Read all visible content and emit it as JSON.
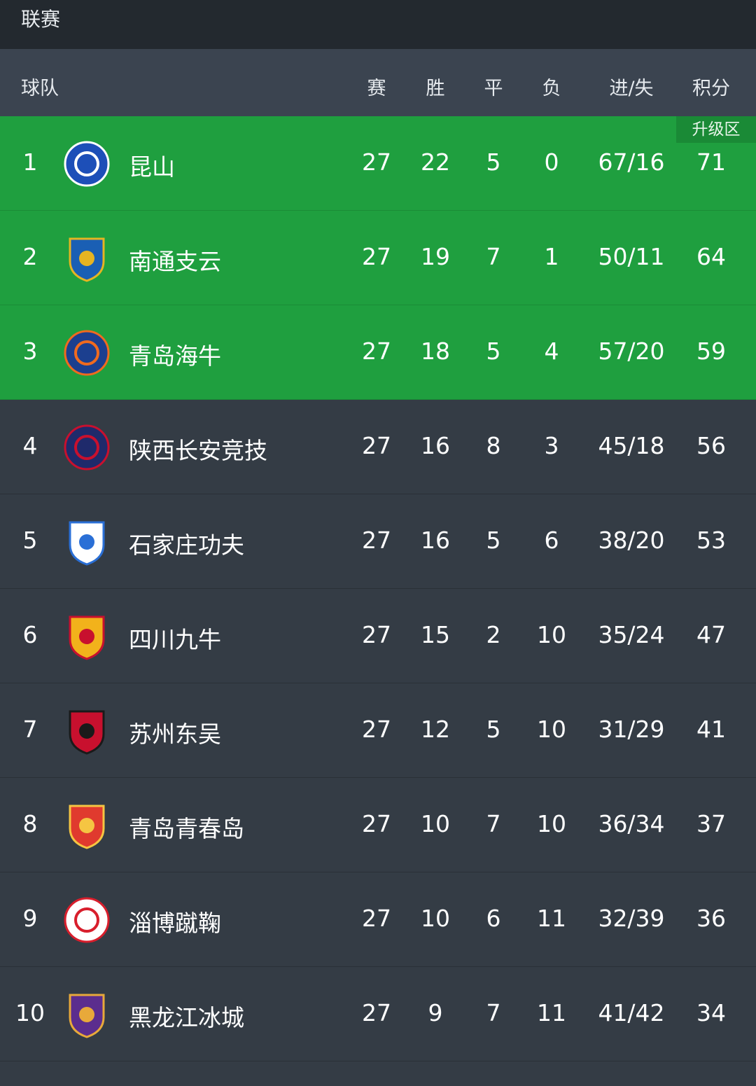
{
  "topbar": {
    "title": "联赛"
  },
  "header": {
    "team": "球队",
    "played": "赛",
    "won": "胜",
    "drawn": "平",
    "lost": "负",
    "goals": "进/失",
    "points": "积分"
  },
  "promotion_label": "升级区",
  "colors": {
    "promotion": "#1f9f3f",
    "row": "#343c45",
    "header": "#3b4450",
    "topbar": "#23292f"
  },
  "rows": [
    {
      "rank": "1",
      "team": "昆山",
      "played": "27",
      "won": "22",
      "drawn": "5",
      "lost": "0",
      "goals": "67/16",
      "points": "71",
      "promo": true,
      "logo_color": "#1d4fb8",
      "logo_accent": "#ffffff"
    },
    {
      "rank": "2",
      "team": "南通支云",
      "played": "27",
      "won": "19",
      "drawn": "7",
      "lost": "1",
      "goals": "50/11",
      "points": "64",
      "promo": true,
      "logo_color": "#1a5fb4",
      "logo_accent": "#e6b422"
    },
    {
      "rank": "3",
      "team": "青岛海牛",
      "played": "27",
      "won": "18",
      "drawn": "5",
      "lost": "4",
      "goals": "57/20",
      "points": "59",
      "promo": true,
      "logo_color": "#1c3f8f",
      "logo_accent": "#f06a1e"
    },
    {
      "rank": "4",
      "team": "陕西长安竞技",
      "played": "27",
      "won": "16",
      "drawn": "8",
      "lost": "3",
      "goals": "45/18",
      "points": "56",
      "promo": false,
      "logo_color": "#1f2a6b",
      "logo_accent": "#c8102e"
    },
    {
      "rank": "5",
      "team": "石家庄功夫",
      "played": "27",
      "won": "16",
      "drawn": "5",
      "lost": "6",
      "goals": "38/20",
      "points": "53",
      "promo": false,
      "logo_color": "#ffffff",
      "logo_accent": "#2a6fd6"
    },
    {
      "rank": "6",
      "team": "四川九牛",
      "played": "27",
      "won": "15",
      "drawn": "2",
      "lost": "10",
      "goals": "35/24",
      "points": "47",
      "promo": false,
      "logo_color": "#f2b21b",
      "logo_accent": "#c8102e"
    },
    {
      "rank": "7",
      "team": "苏州东吴",
      "played": "27",
      "won": "12",
      "drawn": "5",
      "lost": "10",
      "goals": "31/29",
      "points": "41",
      "promo": false,
      "logo_color": "#c8102e",
      "logo_accent": "#1a1a1a"
    },
    {
      "rank": "8",
      "team": "青岛青春岛",
      "played": "27",
      "won": "10",
      "drawn": "7",
      "lost": "10",
      "goals": "36/34",
      "points": "37",
      "promo": false,
      "logo_color": "#e03a2e",
      "logo_accent": "#f5c542"
    },
    {
      "rank": "9",
      "team": "淄博蹴鞠",
      "played": "27",
      "won": "10",
      "drawn": "6",
      "lost": "11",
      "goals": "32/39",
      "points": "36",
      "promo": false,
      "logo_color": "#ffffff",
      "logo_accent": "#d81e2c"
    },
    {
      "rank": "10",
      "team": "黑龙江冰城",
      "played": "27",
      "won": "9",
      "drawn": "7",
      "lost": "11",
      "goals": "41/42",
      "points": "34",
      "promo": false,
      "logo_color": "#5b2d8e",
      "logo_accent": "#e8a93a"
    }
  ]
}
